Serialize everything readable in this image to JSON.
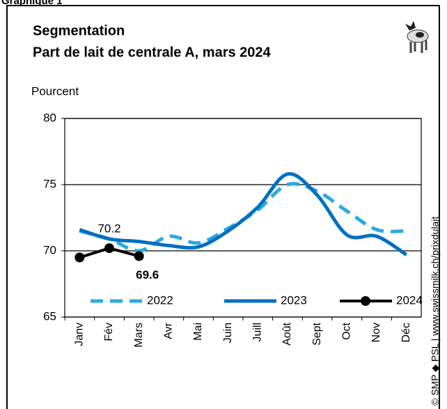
{
  "header": "Graphique 1",
  "credit": "© SMP ◆ PSL | www.swissmilk.ch/prixdulait",
  "chart_data": {
    "type": "line",
    "title": "Segmentation",
    "subtitle": "Part de lait de centrale A, mars 2024",
    "y_label": "Pourcent",
    "categories": [
      "Janv",
      "Fév",
      "Mars",
      "Avr",
      "Mai",
      "Juin",
      "Juill",
      "Août",
      "Sept",
      "Oct",
      "Nov",
      "Déc"
    ],
    "ylim": [
      65,
      80
    ],
    "yticks": [
      65,
      70,
      75,
      80
    ],
    "grid": true,
    "series": [
      {
        "name": "2022",
        "color": "#29abe2",
        "dash": true,
        "values": [
          71.5,
          70.9,
          70.0,
          71.1,
          70.6,
          71.7,
          73.1,
          75.0,
          74.5,
          73.0,
          71.6,
          71.5
        ]
      },
      {
        "name": "2023",
        "color": "#0070c0",
        "values": [
          71.6,
          70.9,
          70.7,
          70.4,
          70.3,
          71.5,
          73.3,
          75.8,
          74.2,
          71.2,
          71.1,
          69.7
        ]
      },
      {
        "name": "2024",
        "color": "#000000",
        "markers": true,
        "values": [
          69.5,
          70.2,
          69.6,
          null,
          null,
          null,
          null,
          null,
          null,
          null,
          null,
          null
        ],
        "value_labels": [
          null,
          "70.2",
          "69.6",
          null,
          null,
          null,
          null,
          null,
          null,
          null,
          null,
          null
        ]
      }
    ]
  }
}
